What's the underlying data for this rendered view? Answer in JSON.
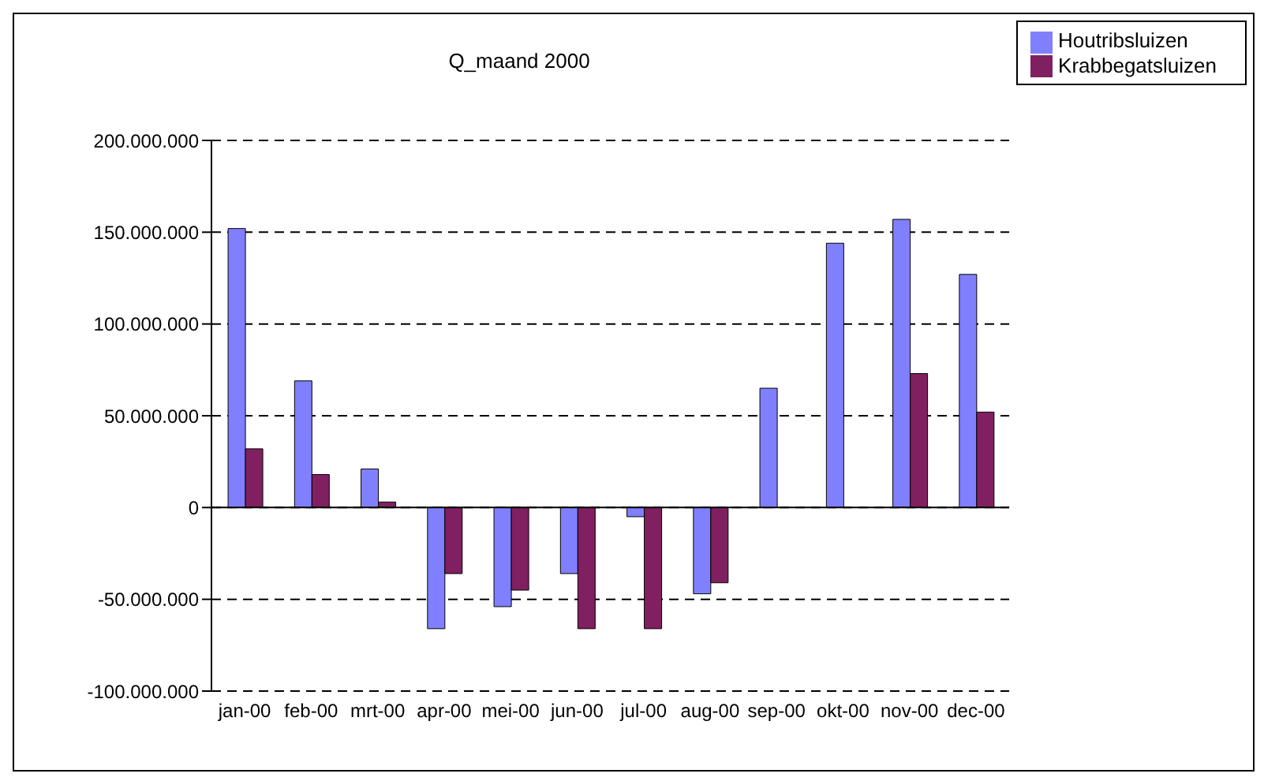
{
  "chart_data": {
    "type": "bar",
    "title": "Q_maand 2000",
    "categories": [
      "jan-00",
      "feb-00",
      "mrt-00",
      "apr-00",
      "mei-00",
      "jun-00",
      "jul-00",
      "aug-00",
      "sep-00",
      "okt-00",
      "nov-00",
      "dec-00"
    ],
    "series": [
      {
        "name": "Houtribsluizen",
        "color": "#8080ff",
        "values": [
          152000000,
          69000000,
          21000000,
          -66000000,
          -54000000,
          -36000000,
          -5000000,
          -47000000,
          65000000,
          144000000,
          157000000,
          127000000
        ]
      },
      {
        "name": "Krabbegatsluizen",
        "color": "#802060",
        "values": [
          32000000,
          18000000,
          3000000,
          -36000000,
          -45000000,
          -66000000,
          -66000000,
          -41000000,
          0,
          0,
          73000000,
          52000000
        ]
      }
    ],
    "ylim": [
      -100000000,
      200000000
    ],
    "yticks": [
      {
        "value": -100000000,
        "label": "-100.000.000"
      },
      {
        "value": -50000000,
        "label": "-50.000.000"
      },
      {
        "value": 0,
        "label": "0"
      },
      {
        "value": 50000000,
        "label": "50.000.000"
      },
      {
        "value": 100000000,
        "label": "100.000.000"
      },
      {
        "value": 150000000,
        "label": "150.000.000"
      },
      {
        "value": 200000000,
        "label": "200.000.000"
      }
    ],
    "grid": "y",
    "legend": "top right"
  }
}
